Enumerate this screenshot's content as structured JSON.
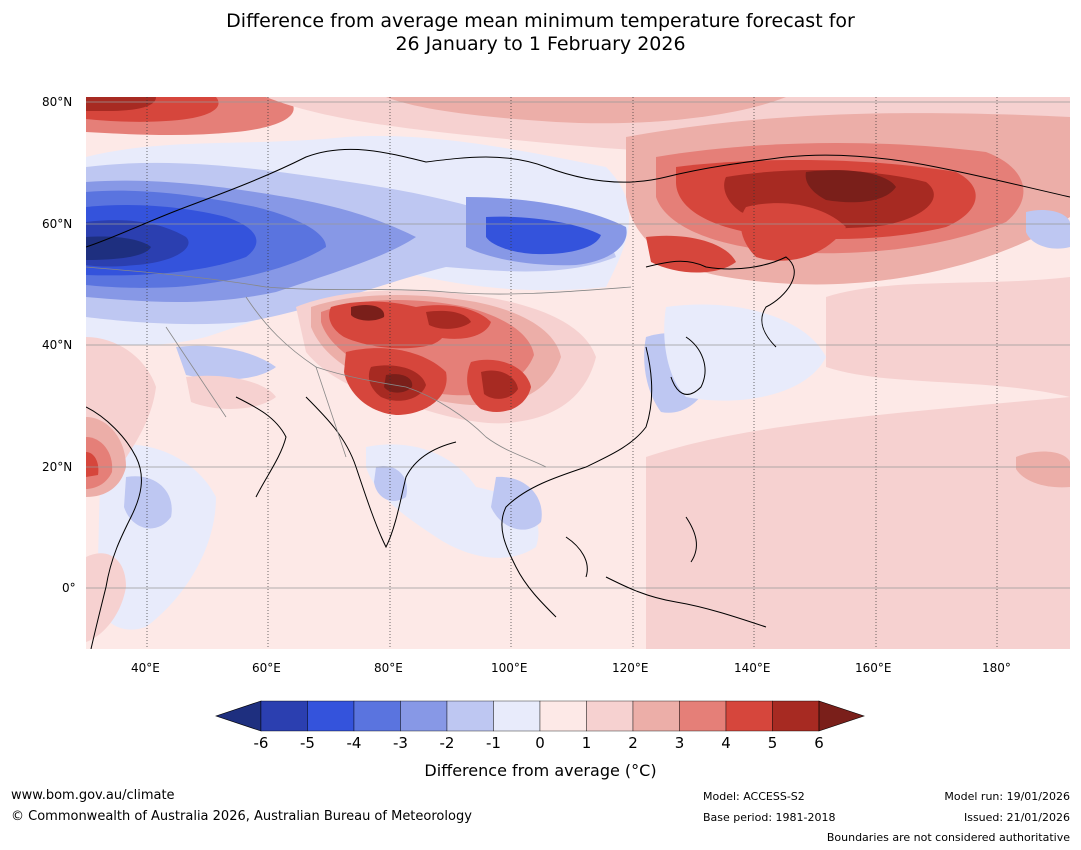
{
  "title_line1": "Difference from average mean minimum temperature forecast for",
  "title_line2": "26 January to 1 February 2026",
  "map": {
    "lon_labels": [
      "40°E",
      "60°E",
      "80°E",
      "100°E",
      "120°E",
      "140°E",
      "160°E",
      "180°"
    ],
    "lat_labels": [
      "80°N",
      "60°N",
      "40°N",
      "20°N",
      "0°"
    ]
  },
  "colorbar": {
    "ticks": [
      "-6",
      "-5",
      "-4",
      "-3",
      "-2",
      "-1",
      "0",
      "1",
      "2",
      "3",
      "4",
      "5",
      "6"
    ],
    "colors": [
      "#1e2f7f",
      "#2b3fb0",
      "#3453dc",
      "#5a74df",
      "#8798e6",
      "#bec7f2",
      "#e8ebfb",
      "#fde9e7",
      "#f6d1d0",
      "#ecaea8",
      "#e57f78",
      "#d6463c",
      "#a72a22",
      "#7a1f1a"
    ],
    "title": "Difference from average (°C)"
  },
  "footer": {
    "website": "www.bom.gov.au/climate",
    "copyright": "© Commonwealth of Australia 2026, Australian Bureau of Meteorology",
    "model": "Model: ACCESS-S2",
    "base_period": "Base period: 1981-2018",
    "model_run": "Model run: 19/01/2026",
    "issued": "Issued: 21/01/2026",
    "disclaimer": "Boundaries are not considered authoritative"
  }
}
